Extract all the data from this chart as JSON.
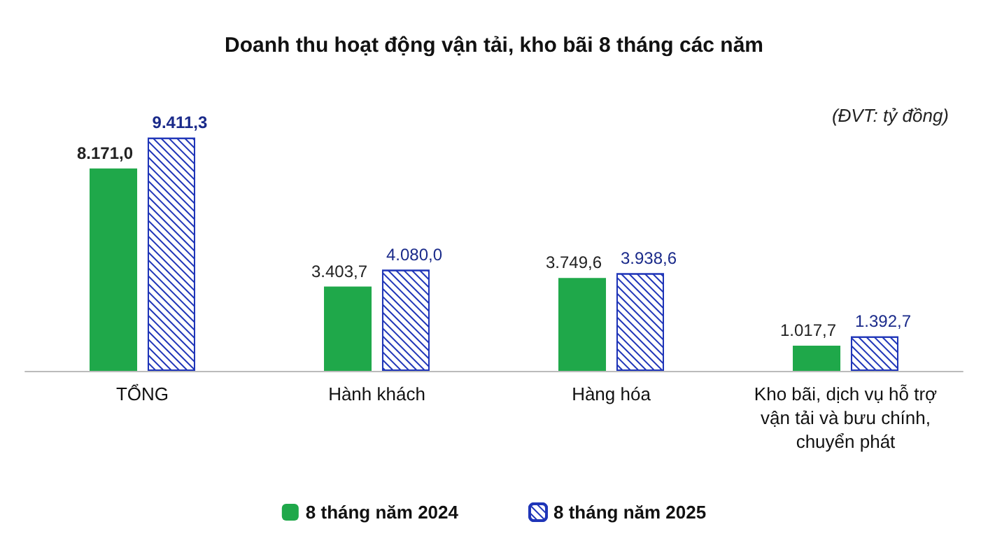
{
  "chart_data": {
    "type": "bar",
    "title": "Doanh thu hoạt động vận tải, kho bãi 8 tháng các năm",
    "annotations": [
      "(ĐVT: tỷ đồng)"
    ],
    "categories": [
      "TỔNG",
      "Hành khách",
      "Hàng hóa",
      "Kho bãi, dịch vụ hỗ trợ vận tải và bưu chính, chuyển phát"
    ],
    "series": [
      {
        "name": "8 tháng năm 2024",
        "color": "#1fa84a",
        "values": [
          8171.0,
          3403.7,
          3749.6,
          1017.7
        ],
        "value_labels": [
          "8.171,0",
          "3.403,7",
          "3.749,6",
          "1.017,7"
        ]
      },
      {
        "name": "8 tháng năm 2025",
        "color": "#1f35b8",
        "values": [
          9411.3,
          4080.0,
          3938.6,
          1392.7
        ],
        "value_labels": [
          "9.411,3",
          "4.080,0",
          "3.938,6",
          "1.392,7"
        ]
      }
    ],
    "legend": "bottom",
    "tick_labels": "x"
  }
}
